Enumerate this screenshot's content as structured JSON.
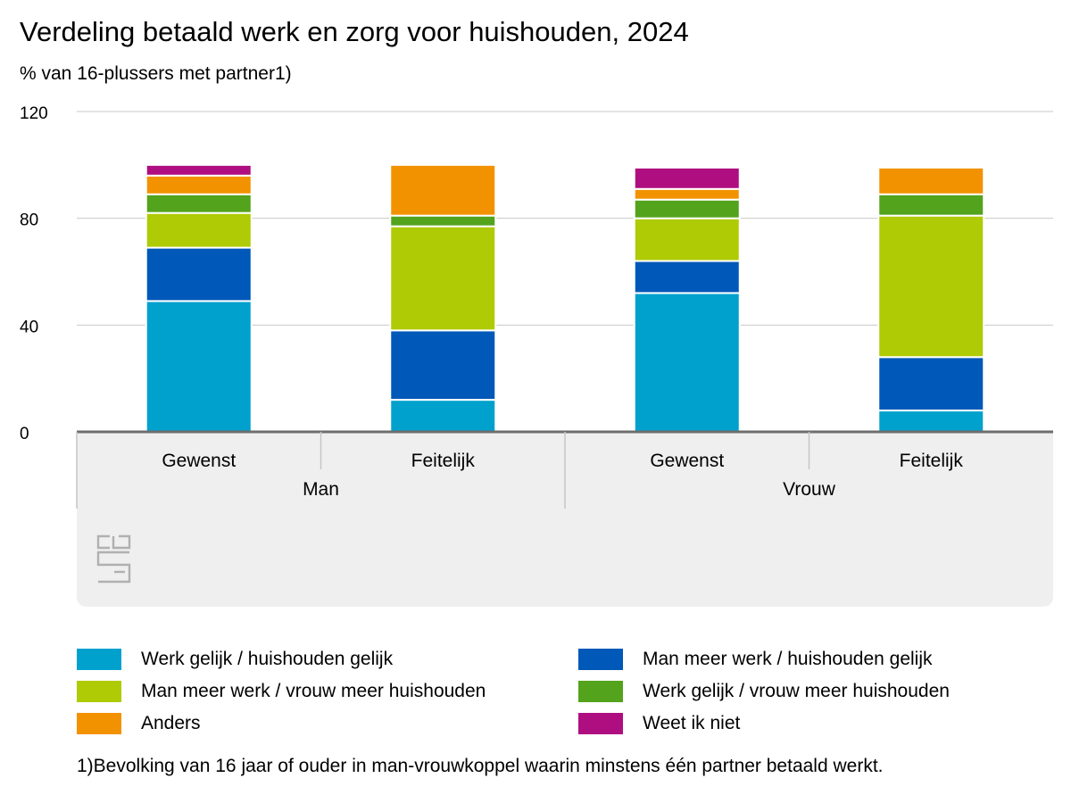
{
  "chart_data": {
    "type": "bar",
    "stacked": true,
    "title": "Verdeling betaald werk en zorg voor huishouden, 2024",
    "subtitle": "% van 16-plussers met partner1)",
    "groups": [
      "Man",
      "Vrouw"
    ],
    "categories": [
      "Gewenst",
      "Feitelijk",
      "Gewenst",
      "Feitelijk"
    ],
    "group_of_category": [
      0,
      0,
      1,
      1
    ],
    "ylim": [
      0,
      120
    ],
    "yticks": [
      0,
      40,
      80,
      120
    ],
    "grid": true,
    "legend_position": "bottom",
    "series": [
      {
        "name": "Werk gelijk / huishouden gelijk",
        "color": "#00a1cd",
        "values": [
          49,
          12,
          52,
          8
        ]
      },
      {
        "name": "Man meer werk / huishouden gelijk",
        "color": "#0058b8",
        "values": [
          20,
          26,
          12,
          20
        ]
      },
      {
        "name": "Man meer werk / vrouw meer huishouden",
        "color": "#afcb05",
        "values": [
          13,
          39,
          16,
          53
        ]
      },
      {
        "name": "Werk gelijk / vrouw meer huishouden",
        "color": "#53a31d",
        "values": [
          7,
          4,
          7,
          8
        ]
      },
      {
        "name": "Anders",
        "color": "#f39200",
        "values": [
          7,
          19,
          4,
          10
        ]
      },
      {
        "name": "Weet ik niet",
        "color": "#af0e80",
        "values": [
          4,
          0,
          8,
          0
        ]
      }
    ],
    "footnote": "1)Bevolking van 16 jaar of ouder in man-vrouwkoppel waarin minstens één partner betaald werkt."
  },
  "logo": "cbs-logo-icon"
}
